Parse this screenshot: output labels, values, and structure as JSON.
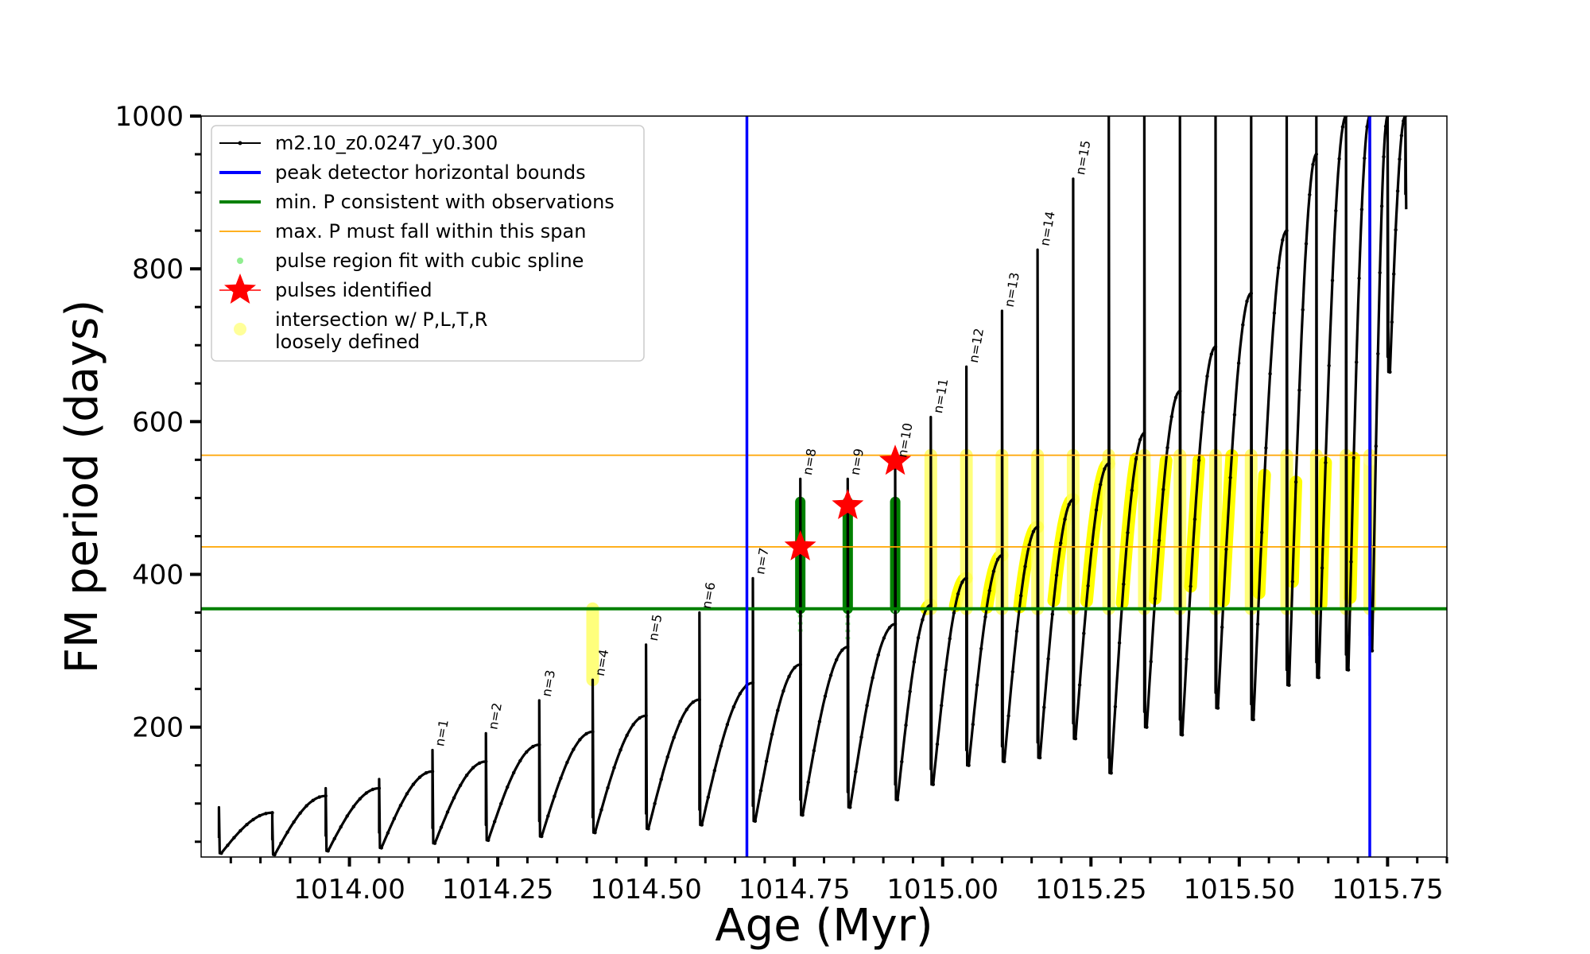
{
  "chart_data": {
    "type": "line",
    "xlabel": "Age (Myr)",
    "ylabel": "FM period (days)",
    "xlim": [
      1013.75,
      1015.85
    ],
    "ylim": [
      30,
      1000
    ],
    "x_ticks": [
      1014.0,
      1014.25,
      1014.5,
      1014.75,
      1015.0,
      1015.25,
      1015.5,
      1015.75
    ],
    "x_tick_labels": [
      "1014.00",
      "1014.25",
      "1014.50",
      "1014.75",
      "1015.00",
      "1015.25",
      "1015.50",
      "1015.75"
    ],
    "y_ticks": [
      200,
      400,
      600,
      800,
      1000
    ],
    "y_tick_labels": [
      "200",
      "400",
      "600",
      "800",
      "1000"
    ],
    "legend_position": "upper-left",
    "legend": [
      {
        "label": "m2.10_z0.0247_y0.300",
        "kind": "line-marker",
        "color": "#000000"
      },
      {
        "label": "peak detector horizontal bounds",
        "kind": "line",
        "color": "#0000ff"
      },
      {
        "label": "min. P consistent with observations",
        "kind": "line",
        "color": "#008000"
      },
      {
        "label": "max. P must fall within this span",
        "kind": "thin-line",
        "color": "#ffa500"
      },
      {
        "label": "pulse region fit with cubic spline",
        "kind": "dot",
        "color": "#90ee90"
      },
      {
        "label": "pulses identified",
        "kind": "star",
        "color": "#ff0000"
      },
      {
        "label": "intersection w/ P,L,T,R",
        "label2": "loosely defined",
        "kind": "circle",
        "color": "#ffff99"
      }
    ],
    "reference_lines": {
      "vertical_blue": [
        1014.67,
        1015.72
      ],
      "horizontal_green": 355,
      "horizontal_orange": [
        436,
        556
      ]
    },
    "pulses": [
      {
        "t": 1013.78,
        "peak": 95,
        "pre": 58,
        "base": 35
      },
      {
        "t": 1013.87,
        "peak": 80,
        "pre": 88,
        "base": 33
      },
      {
        "t": 1013.96,
        "peak": 120,
        "pre": 110,
        "base": 38
      },
      {
        "t": 1014.05,
        "peak": 132,
        "pre": 120,
        "base": 42
      },
      {
        "t": 1014.14,
        "peak": 170,
        "pre": 142,
        "base": 48,
        "label": "n=1"
      },
      {
        "t": 1014.23,
        "peak": 192,
        "pre": 155,
        "base": 52,
        "label": "n=2"
      },
      {
        "t": 1014.32,
        "peak": 235,
        "pre": 177,
        "base": 57,
        "label": "n=3"
      },
      {
        "t": 1014.41,
        "peak": 262,
        "pre": 194,
        "base": 62,
        "label": "n=4"
      },
      {
        "t": 1014.5,
        "peak": 308,
        "pre": 215,
        "base": 67,
        "label": "n=5"
      },
      {
        "t": 1014.59,
        "peak": 350,
        "pre": 236,
        "base": 72,
        "label": "n=6"
      },
      {
        "t": 1014.68,
        "peak": 395,
        "pre": 258,
        "base": 77,
        "label": "n=7"
      },
      {
        "t": 1014.76,
        "peak": 525,
        "pre": 282,
        "base": 85,
        "label": "n=8"
      },
      {
        "t": 1014.84,
        "peak": 525,
        "pre": 305,
        "base": 95,
        "label": "n=9"
      },
      {
        "t": 1014.92,
        "peak": 548,
        "pre": 335,
        "base": 105,
        "label": "n=10"
      },
      {
        "t": 1014.98,
        "peak": 606,
        "pre": 360,
        "base": 125,
        "label": "n=11"
      },
      {
        "t": 1015.04,
        "peak": 672,
        "pre": 395,
        "base": 150,
        "label": "n=12"
      },
      {
        "t": 1015.1,
        "peak": 745,
        "pre": 425,
        "base": 155,
        "label": "n=13"
      },
      {
        "t": 1015.16,
        "peak": 825,
        "pre": 462,
        "base": 160,
        "label": "n=14"
      },
      {
        "t": 1015.22,
        "peak": 918,
        "pre": 498,
        "base": 185,
        "label": "n=15"
      },
      {
        "t": 1015.28,
        "peak": 1000,
        "pre": 545,
        "base": 140
      },
      {
        "t": 1015.34,
        "peak": 1000,
        "pre": 585,
        "base": 200
      },
      {
        "t": 1015.4,
        "peak": 1000,
        "pre": 640,
        "base": 190
      },
      {
        "t": 1015.46,
        "peak": 1000,
        "pre": 698,
        "base": 225
      },
      {
        "t": 1015.52,
        "peak": 1000,
        "pre": 768,
        "base": 210
      },
      {
        "t": 1015.58,
        "peak": 1000,
        "pre": 850,
        "base": 255
      },
      {
        "t": 1015.63,
        "peak": 1000,
        "pre": 950,
        "base": 265
      },
      {
        "t": 1015.68,
        "peak": 1000,
        "pre": 1000,
        "base": 275
      },
      {
        "t": 1015.72,
        "peak": 1000,
        "pre": 1000,
        "base": 300
      },
      {
        "t": 1015.75,
        "peak": 1000,
        "pre": 1000,
        "base": 665
      },
      {
        "t": 1015.78,
        "peak": 1000,
        "pre": 1000,
        "base": 878
      }
    ],
    "pulses_identified": [
      {
        "x": 1014.76,
        "y": 436
      },
      {
        "x": 1014.84,
        "y": 490
      },
      {
        "x": 1014.92,
        "y": 548
      }
    ]
  }
}
